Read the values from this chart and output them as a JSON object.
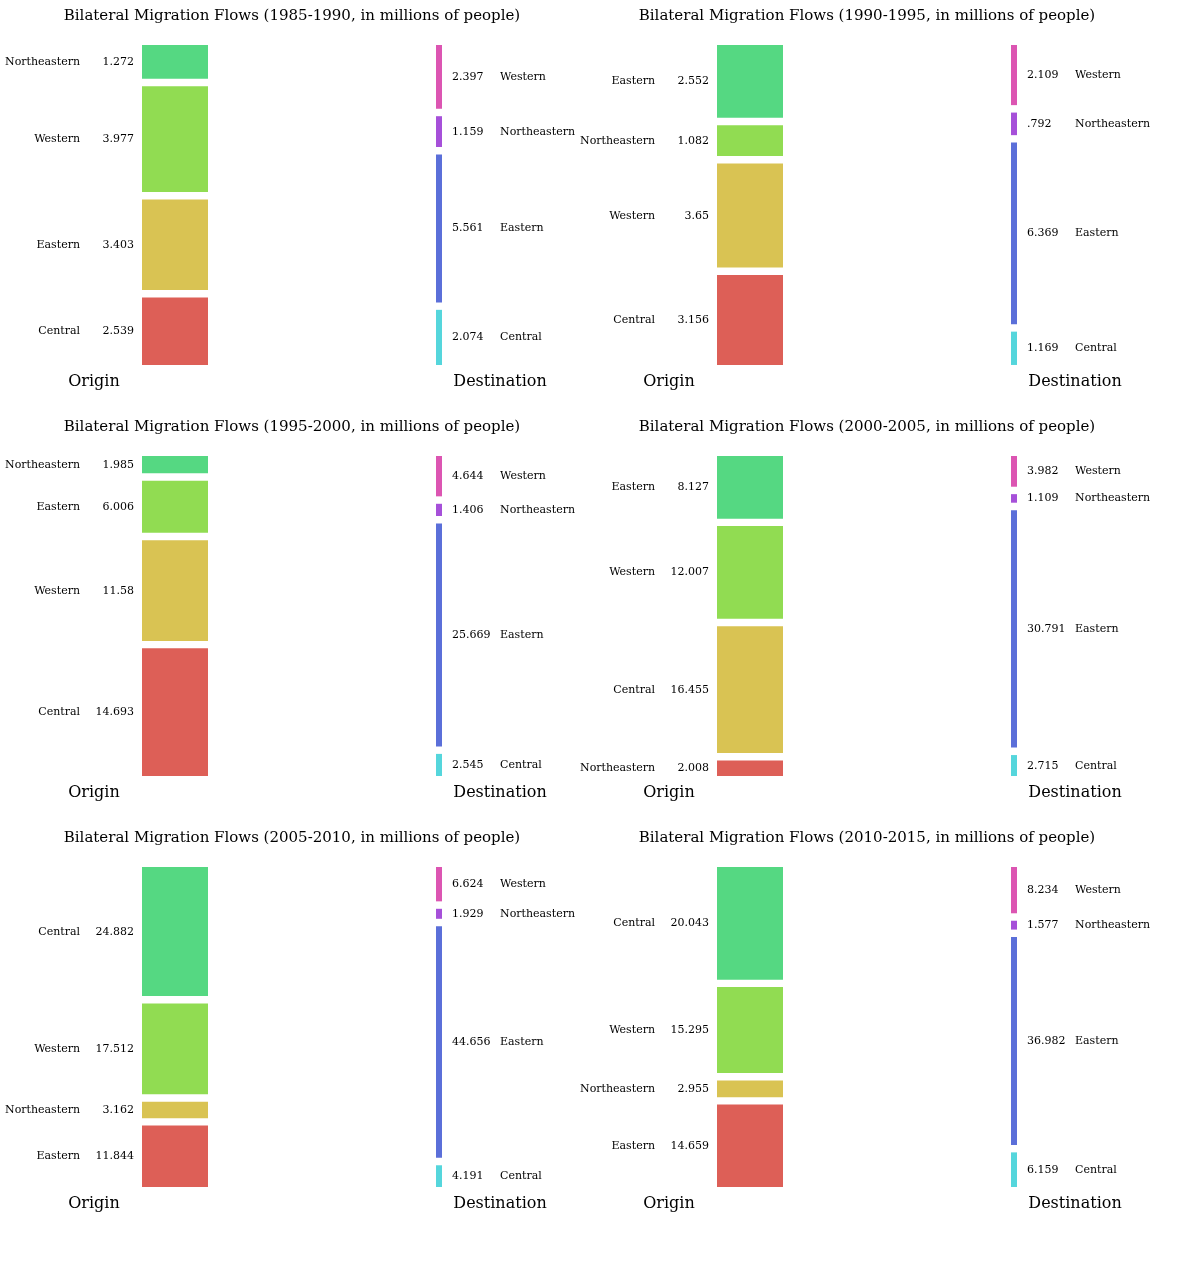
{
  "chart_data": [
    {
      "type": "other",
      "title": "Bilateral Migration Flows (1985-1990, in millions of people)",
      "annotations": [
        "Origin",
        "Destination"
      ],
      "categories": [
        "Northeastern",
        "Western",
        "Eastern",
        "Central",
        "Western",
        "Northeastern",
        "Eastern",
        "Central"
      ],
      "values": [
        1.272,
        3.977,
        3.403,
        2.539,
        2.397,
        1.159,
        5.561,
        2.074
      ],
      "value_labels": [
        "1.272",
        "3.977",
        "3.403",
        "2.539",
        "2.397",
        "1.159",
        "5.561",
        "2.074"
      ],
      "colors": [
        "#55d882",
        "#91dc52",
        "#d9c353",
        "#dd5f57",
        "#dc55b2",
        "#a650d9",
        "#5b6fd9",
        "#55d6dc"
      ]
    },
    {
      "type": "other",
      "title": "Bilateral Migration Flows (1990-1995, in millions of people)",
      "annotations": [
        "Origin",
        "Destination"
      ],
      "categories": [
        "Eastern",
        "Northeastern",
        "Western",
        "Central",
        "Western",
        "Northeastern",
        "Eastern",
        "Central"
      ],
      "values": [
        2.552,
        1.082,
        3.65,
        3.156,
        2.109,
        0.792,
        6.369,
        1.169
      ],
      "value_labels": [
        "2.552",
        "1.082",
        "3.65",
        "3.156",
        "2.109",
        ".792",
        "6.369",
        "1.169"
      ],
      "colors": [
        "#55d882",
        "#91dc52",
        "#d9c353",
        "#dd5f57",
        "#dc55b2",
        "#a650d9",
        "#5b6fd9",
        "#55d6dc"
      ]
    },
    {
      "type": "other",
      "title": "Bilateral Migration Flows (1995-2000, in millions of people)",
      "annotations": [
        "Origin",
        "Destination"
      ],
      "categories": [
        "Northeastern",
        "Eastern",
        "Western",
        "Central",
        "Western",
        "Northeastern",
        "Eastern",
        "Central"
      ],
      "values": [
        1.985,
        6.006,
        11.58,
        14.693,
        4.644,
        1.406,
        25.669,
        2.545
      ],
      "value_labels": [
        "1.985",
        "6.006",
        "11.58",
        "14.693",
        "4.644",
        "1.406",
        "25.669",
        "2.545"
      ],
      "colors": [
        "#55d882",
        "#91dc52",
        "#d9c353",
        "#dd5f57",
        "#dc55b2",
        "#a650d9",
        "#5b6fd9",
        "#55d6dc"
      ]
    },
    {
      "type": "other",
      "title": "Bilateral Migration Flows (2000-2005, in millions of people)",
      "annotations": [
        "Origin",
        "Destination"
      ],
      "categories": [
        "Eastern",
        "Western",
        "Central",
        "Northeastern",
        "Western",
        "Northeastern",
        "Eastern",
        "Central"
      ],
      "values": [
        8.127,
        12.007,
        16.455,
        2.008,
        3.982,
        1.109,
        30.791,
        2.715
      ],
      "value_labels": [
        "8.127",
        "12.007",
        "16.455",
        "2.008",
        "3.982",
        "1.109",
        "30.791",
        "2.715"
      ],
      "colors": [
        "#55d882",
        "#91dc52",
        "#d9c353",
        "#dd5f57",
        "#dc55b2",
        "#a650d9",
        "#5b6fd9",
        "#55d6dc"
      ]
    },
    {
      "type": "other",
      "title": "Bilateral Migration Flows (2005-2010, in millions of people)",
      "annotations": [
        "Origin",
        "Destination"
      ],
      "categories": [
        "Central",
        "Western",
        "Northeastern",
        "Eastern",
        "Western",
        "Northeastern",
        "Eastern",
        "Central"
      ],
      "values": [
        24.882,
        17.512,
        3.162,
        11.844,
        6.624,
        1.929,
        44.656,
        4.191
      ],
      "value_labels": [
        "24.882",
        "17.512",
        "3.162",
        "11.844",
        "6.624",
        "1.929",
        "44.656",
        "4.191"
      ],
      "colors": [
        "#55d882",
        "#91dc52",
        "#d9c353",
        "#dd5f57",
        "#dc55b2",
        "#a650d9",
        "#5b6fd9",
        "#55d6dc"
      ]
    },
    {
      "type": "other",
      "title": "Bilateral Migration Flows (2010-2015, in millions of people)",
      "annotations": [
        "Origin",
        "Destination"
      ],
      "categories": [
        "Central",
        "Western",
        "Northeastern",
        "Eastern",
        "Western",
        "Northeastern",
        "Eastern",
        "Central"
      ],
      "values": [
        20.043,
        15.295,
        2.955,
        14.659,
        8.234,
        1.577,
        36.982,
        6.159
      ],
      "value_labels": [
        "20.043",
        "15.295",
        "2.955",
        "14.659",
        "8.234",
        "1.577",
        "36.982",
        "6.159"
      ],
      "colors": [
        "#55d882",
        "#91dc52",
        "#d9c353",
        "#dd5f57",
        "#dc55b2",
        "#a650d9",
        "#5b6fd9",
        "#55d6dc"
      ]
    }
  ]
}
